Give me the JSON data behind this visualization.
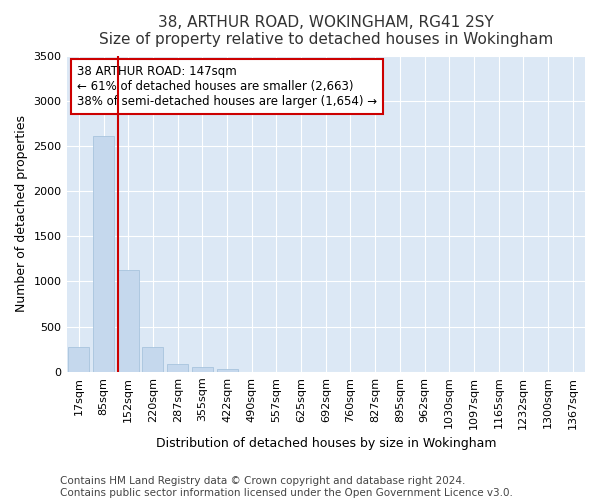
{
  "title": "38, ARTHUR ROAD, WOKINGHAM, RG41 2SY",
  "subtitle": "Size of property relative to detached houses in Wokingham",
  "xlabel": "Distribution of detached houses by size in Wokingham",
  "ylabel": "Number of detached properties",
  "categories": [
    "17sqm",
    "85sqm",
    "152sqm",
    "220sqm",
    "287sqm",
    "355sqm",
    "422sqm",
    "490sqm",
    "557sqm",
    "625sqm",
    "692sqm",
    "760sqm",
    "827sqm",
    "895sqm",
    "962sqm",
    "1030sqm",
    "1097sqm",
    "1165sqm",
    "1232sqm",
    "1300sqm",
    "1367sqm"
  ],
  "bar_values": [
    270,
    2610,
    1130,
    275,
    85,
    50,
    30,
    0,
    0,
    0,
    0,
    0,
    0,
    0,
    0,
    0,
    0,
    0,
    0,
    0,
    0
  ],
  "bar_color": "#c5d8ed",
  "bar_edge_color": "#a8c4de",
  "property_line_color": "#cc0000",
  "annotation_text": "38 ARTHUR ROAD: 147sqm\n← 61% of detached houses are smaller (2,663)\n38% of semi-detached houses are larger (1,654) →",
  "annotation_box_color": "#ffffff",
  "annotation_box_edge_color": "#cc0000",
  "ylim": [
    0,
    3500
  ],
  "yticks": [
    0,
    500,
    1000,
    1500,
    2000,
    2500,
    3000,
    3500
  ],
  "figure_bg_color": "#ffffff",
  "plot_bg_color": "#dce8f5",
  "grid_color": "#ffffff",
  "footer_line1": "Contains HM Land Registry data © Crown copyright and database right 2024.",
  "footer_line2": "Contains public sector information licensed under the Open Government Licence v3.0.",
  "title_fontsize": 11,
  "subtitle_fontsize": 10,
  "xlabel_fontsize": 9,
  "ylabel_fontsize": 9,
  "tick_fontsize": 8,
  "footer_fontsize": 7.5
}
